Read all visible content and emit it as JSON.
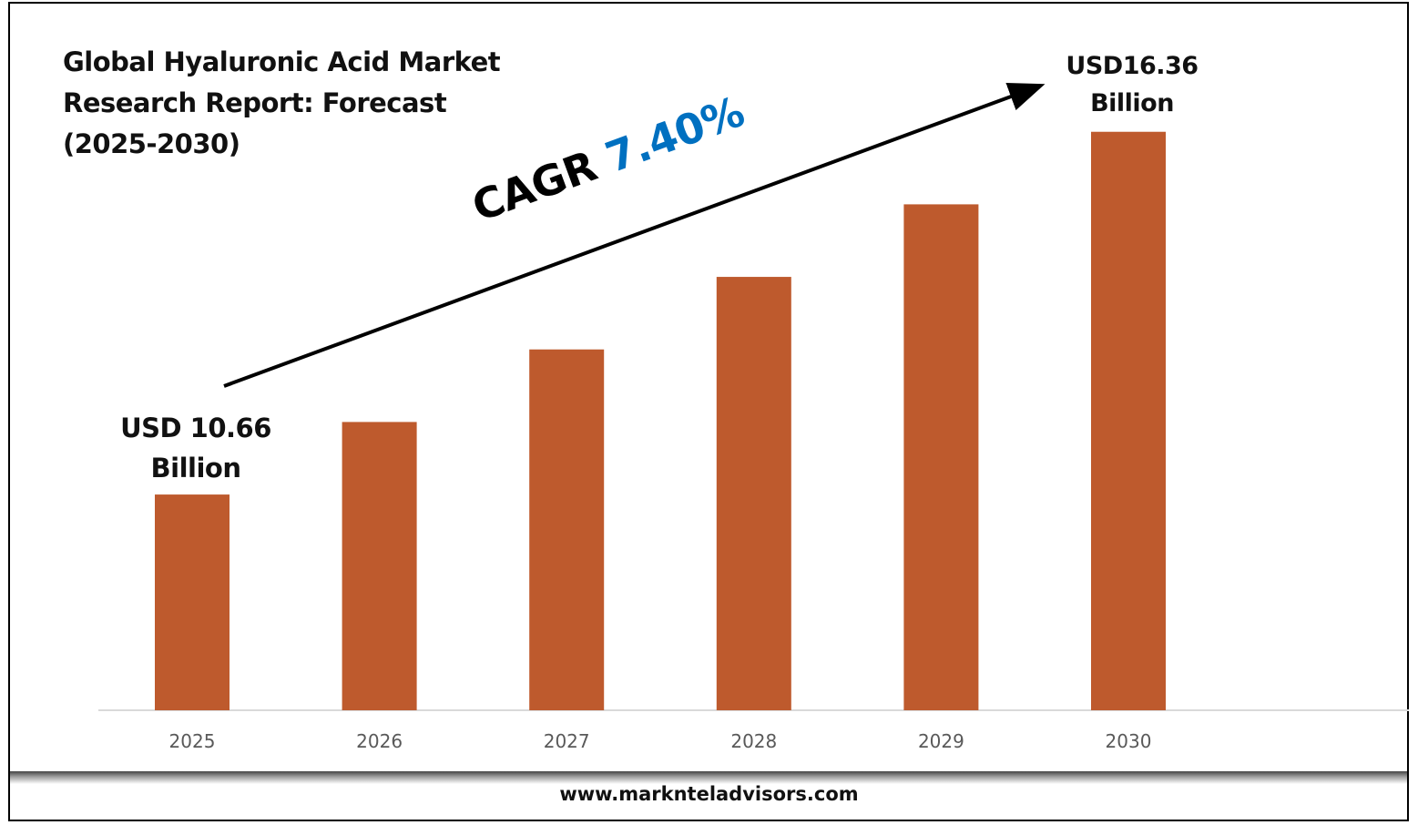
{
  "chart_data": {
    "type": "bar",
    "title": "Global Hyaluronic Acid Market Research Report: Forecast (2025-2030)",
    "title_lines": [
      "Global Hyaluronic Acid Market",
      "Research Report: Forecast",
      "(2025-2030)"
    ],
    "categories": [
      "2025",
      "2026",
      "2027",
      "2028",
      "2029",
      "2030"
    ],
    "values": [
      10.66,
      11.8,
      12.94,
      14.08,
      15.22,
      16.36
    ],
    "unit": "USD Billion",
    "ylim": [
      7.27,
      17.0
    ],
    "grid": false,
    "bar_color": "#BE5A2D",
    "annotations": {
      "start_label": [
        "USD 10.66",
        "Billion"
      ],
      "end_label": [
        "USD16.36",
        "Billion"
      ],
      "cagr_prefix": "CAGR",
      "cagr_value": "7.40%",
      "cagr_color": "#0070C0"
    }
  },
  "footer": {
    "website": "www.marknteladvisors.com"
  }
}
